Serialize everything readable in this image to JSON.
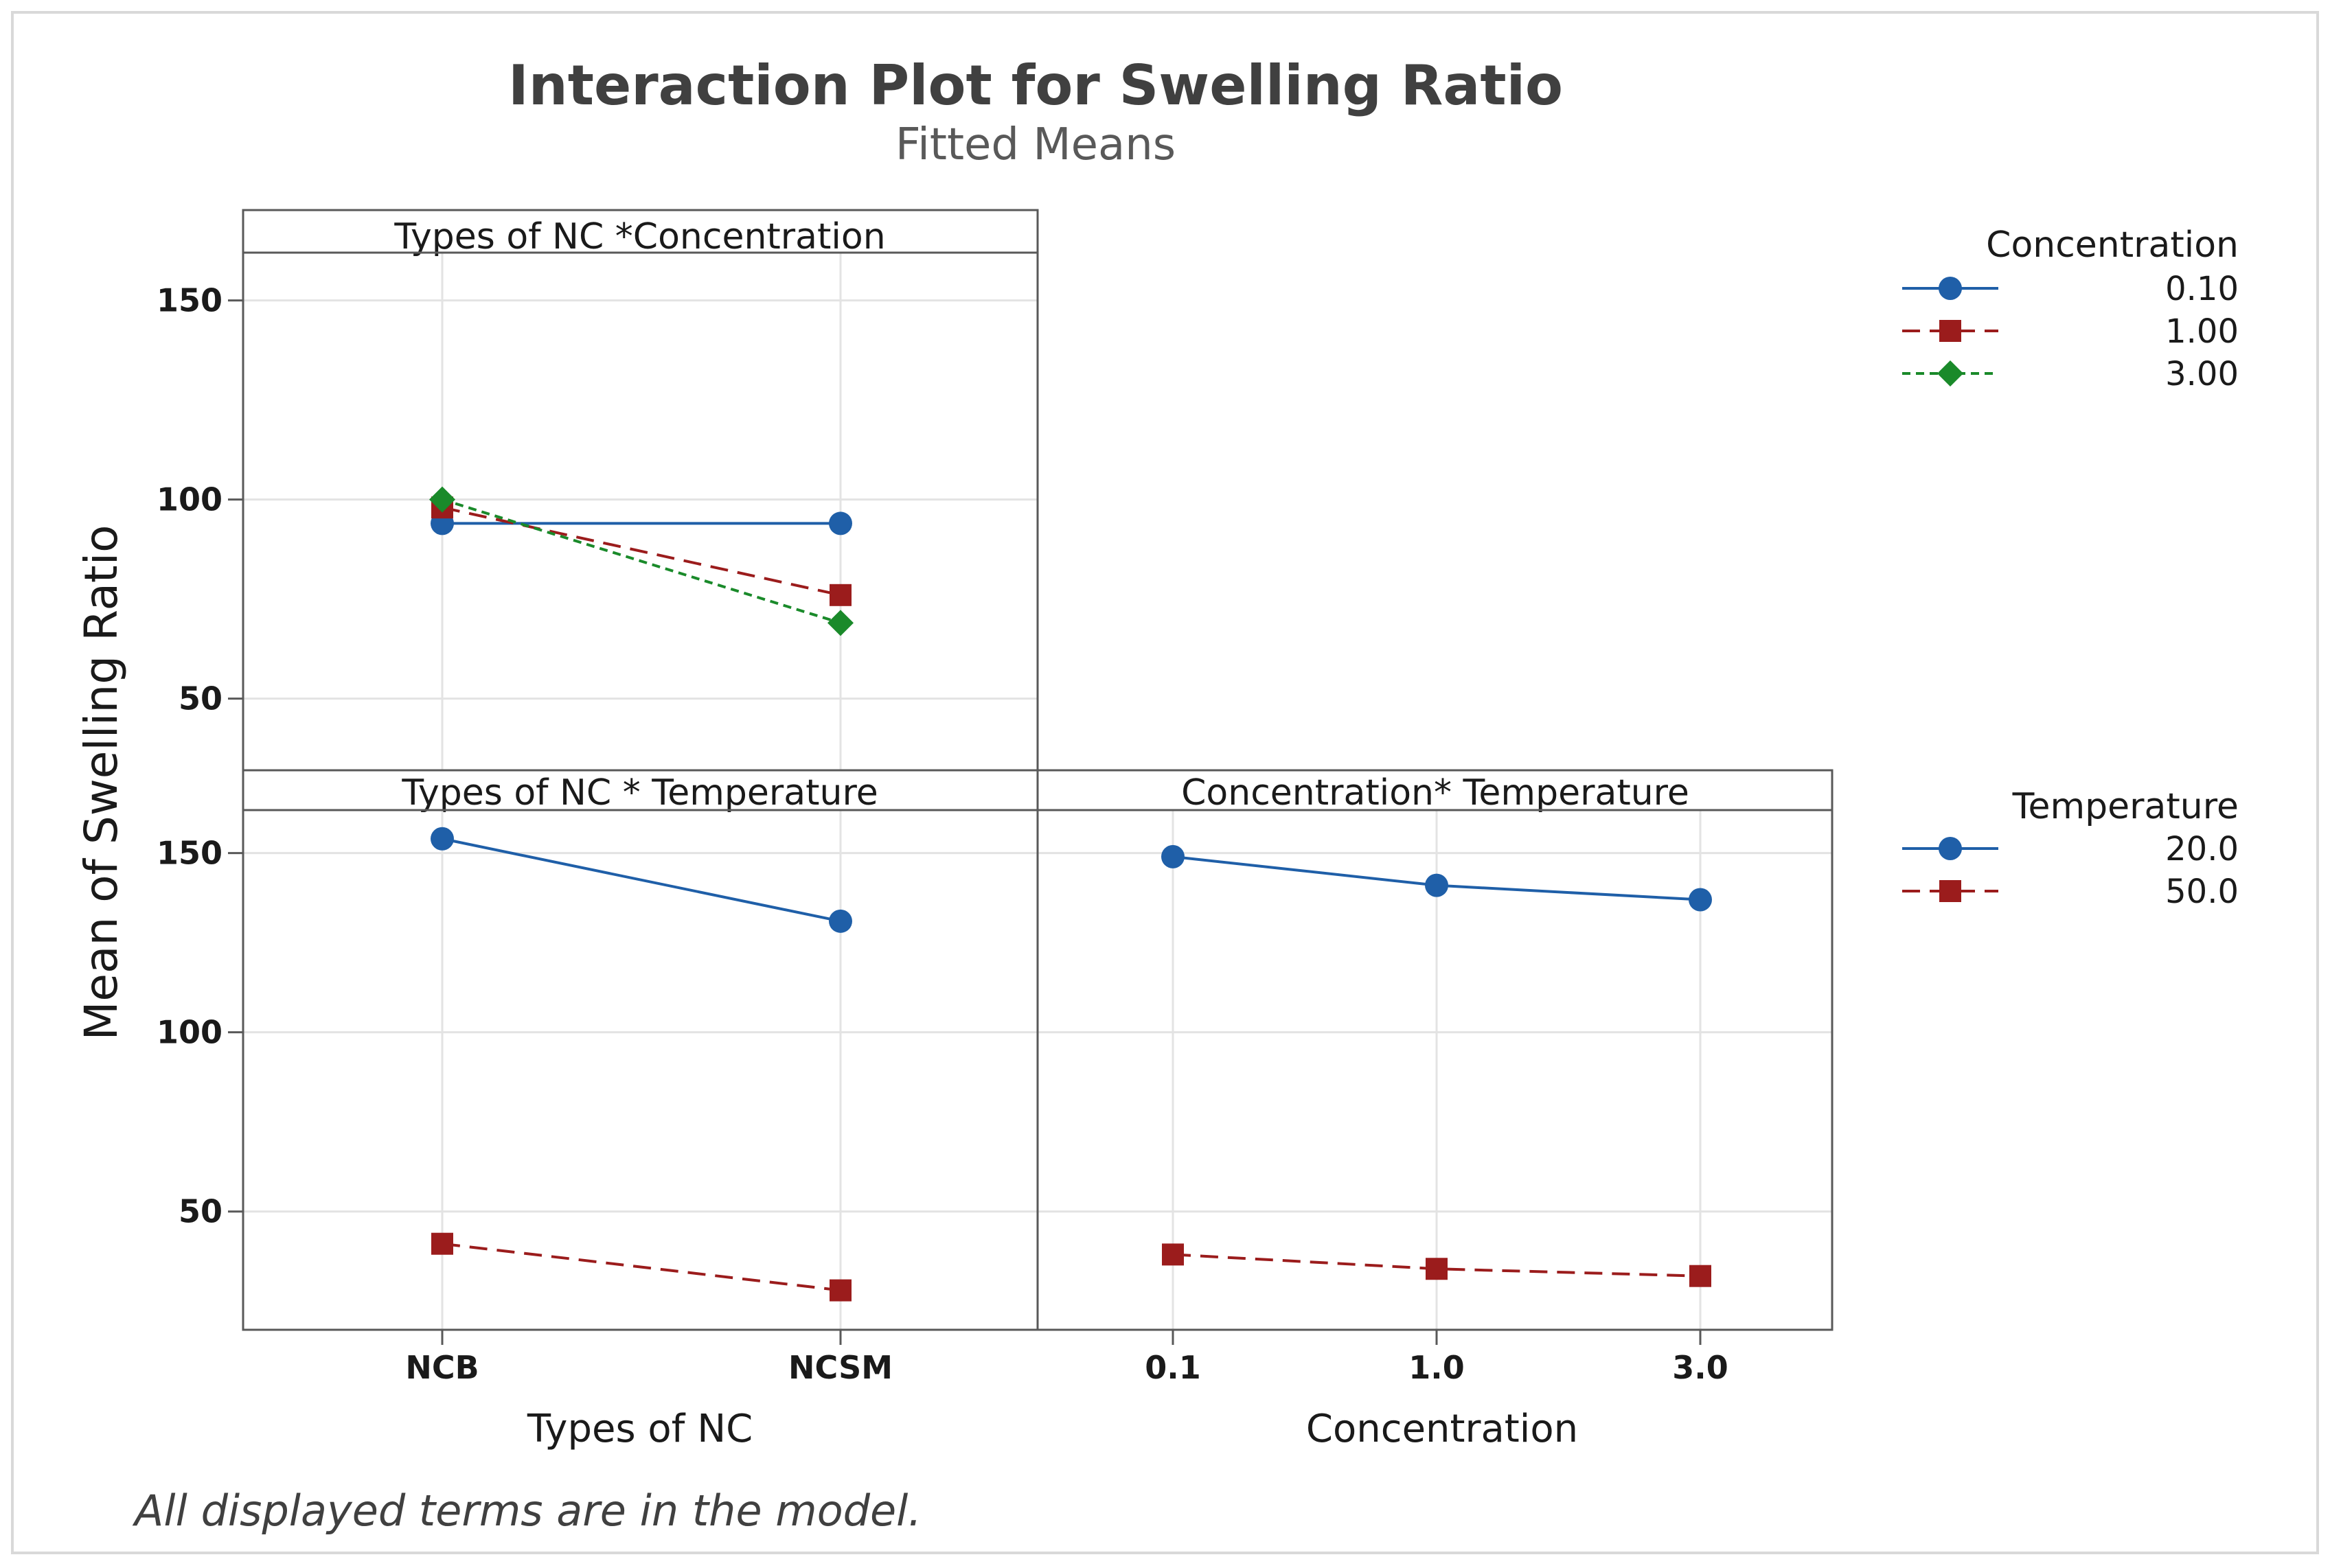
{
  "chart_data": {
    "type": "line",
    "title": "Interaction Plot for Swelling Ratio",
    "subtitle": "Fitted Means",
    "ylabel": "Mean of Swelling Ratio",
    "footnote": "All displayed terms are in the model.",
    "colors": {
      "blue": "#1f5fa8",
      "red": "#9b1c1c",
      "green": "#1a8a2a"
    },
    "panels": [
      {
        "id": "nc_conc",
        "label": "Types of NC *Concentration",
        "categories": [
          "NCB",
          "NCSM"
        ],
        "ylim": [
          32,
          162
        ],
        "yticks": [
          50,
          100,
          150
        ],
        "series": [
          {
            "name": "0.10",
            "values": [
              94,
              94
            ]
          },
          {
            "name": "1.00",
            "values": [
              98,
              76
            ]
          },
          {
            "name": "3.00",
            "values": [
              100,
              69
            ]
          }
        ]
      },
      {
        "id": "nc_temp",
        "label": "Types of NC * Temperature",
        "categories": [
          "NCB",
          "NCSM"
        ],
        "ylim": [
          17,
          162
        ],
        "yticks": [
          50,
          100,
          150
        ],
        "series": [
          {
            "name": "20.0",
            "values": [
              154,
              131
            ]
          },
          {
            "name": "50.0",
            "values": [
              41,
              28
            ]
          }
        ]
      },
      {
        "id": "conc_temp",
        "label": "Concentration* Temperature",
        "categories": [
          "0.1",
          "1.0",
          "3.0"
        ],
        "ylim": [
          17,
          162
        ],
        "yticks": [
          50,
          100,
          150
        ],
        "series": [
          {
            "name": "20.0",
            "values": [
              149,
              141,
              137
            ]
          },
          {
            "name": "50.0",
            "values": [
              38,
              34,
              32
            ]
          }
        ]
      }
    ],
    "x_axis_labels": [
      "Types of NC",
      "Concentration"
    ],
    "legends": [
      {
        "title": "Concentration",
        "entries": [
          "0.10",
          "1.00",
          "3.00"
        ]
      },
      {
        "title": "Temperature",
        "entries": [
          "20.0",
          "50.0"
        ]
      }
    ]
  }
}
